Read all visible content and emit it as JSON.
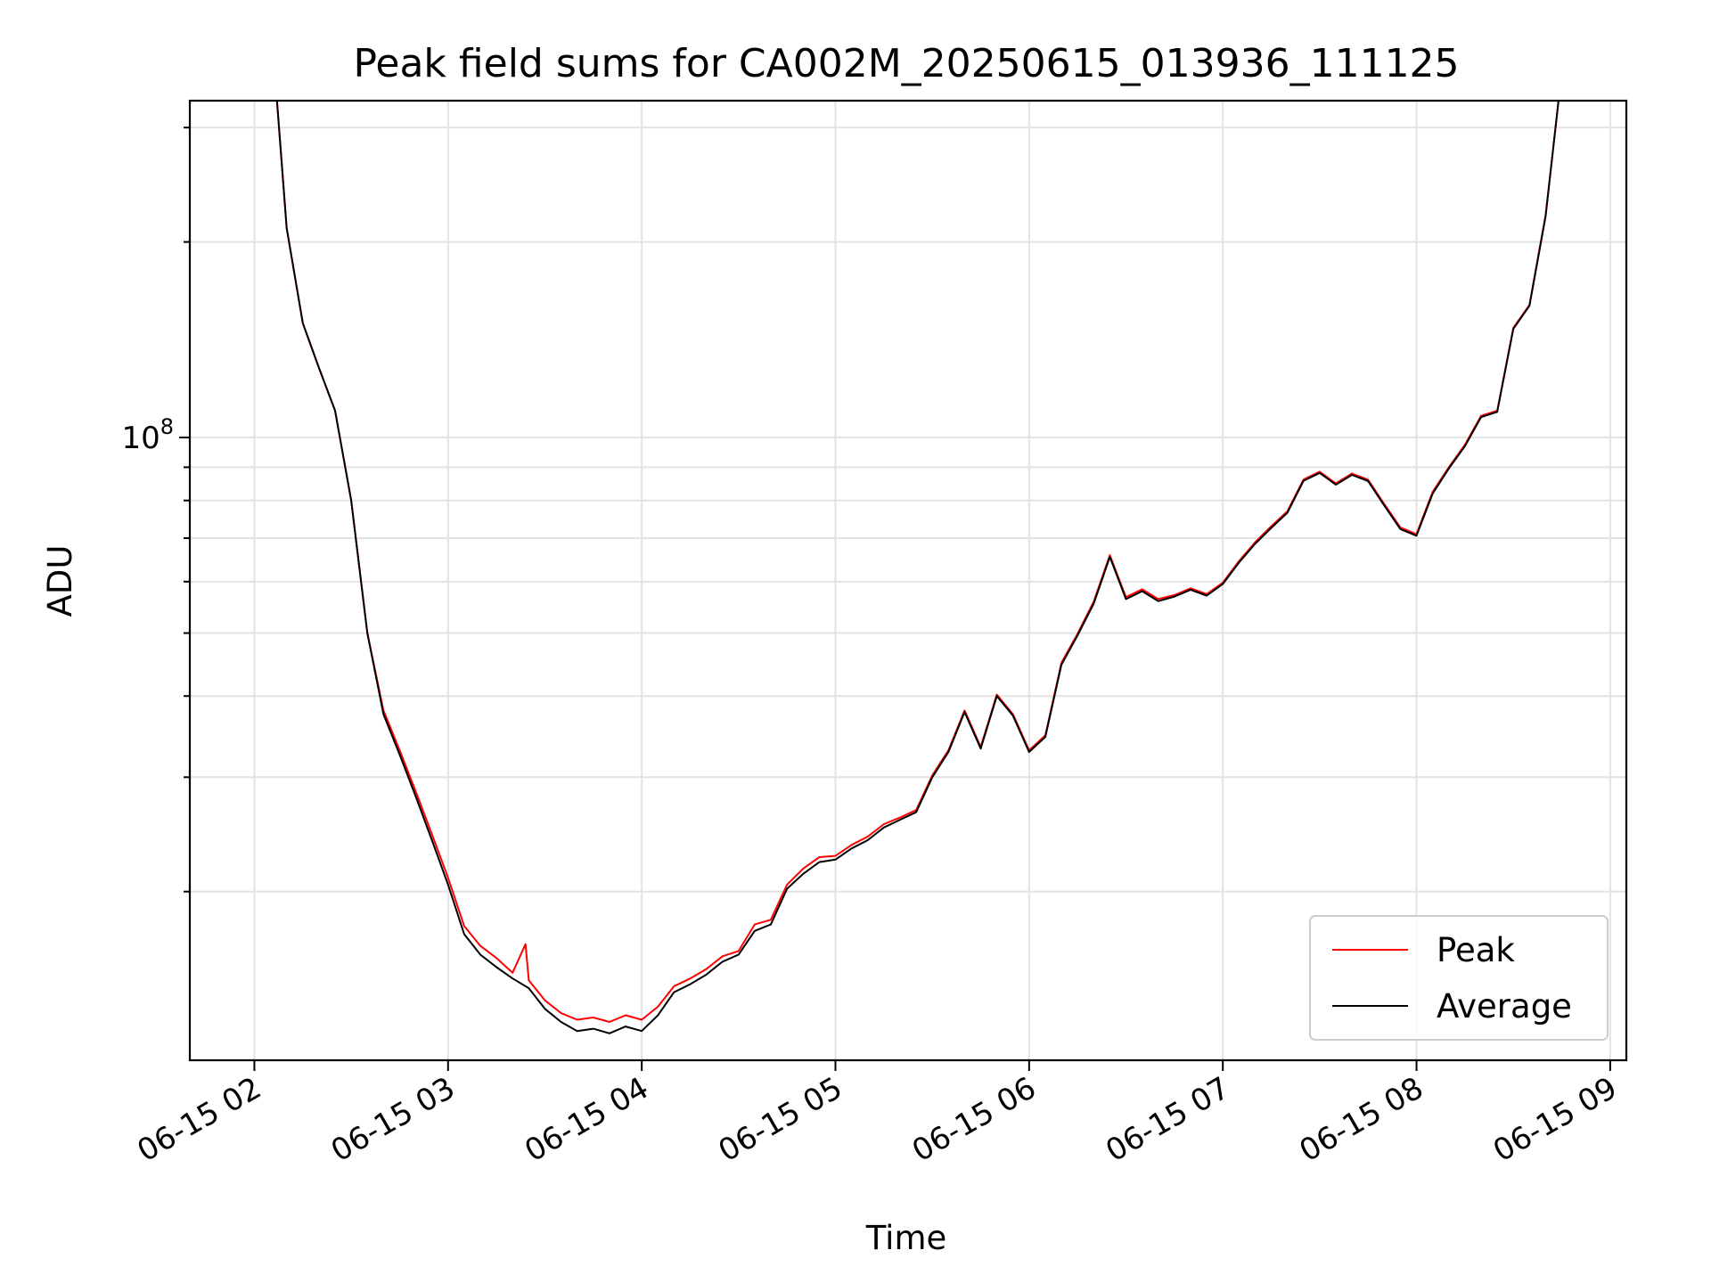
{
  "chart_data": {
    "type": "line",
    "title": "Peak field sums for CA002M_20250615_013936_111125",
    "xlabel": "Time",
    "ylabel": "ADU",
    "y_scale": "log",
    "ylim": [
      11000000,
      330000000
    ],
    "y_tick_label": {
      "base": "10",
      "exponent": "8"
    },
    "x_range_hours": [
      "06-15 01:40",
      "06-15 09:05"
    ],
    "x_ticks": [
      {
        "time": "02:00",
        "label": "06-15 02"
      },
      {
        "time": "03:00",
        "label": "06-15 03"
      },
      {
        "time": "04:00",
        "label": "06-15 04"
      },
      {
        "time": "05:00",
        "label": "06-15 05"
      },
      {
        "time": "06:00",
        "label": "06-15 06"
      },
      {
        "time": "07:00",
        "label": "06-15 07"
      },
      {
        "time": "08:00",
        "label": "06-15 08"
      },
      {
        "time": "09:00",
        "label": "06-15 09"
      }
    ],
    "grid": true,
    "legend_position": "lower right",
    "legend": [
      {
        "label": "Peak",
        "color": "#ff0000"
      },
      {
        "label": "Average",
        "color": "#000000"
      }
    ],
    "series": [
      {
        "name": "Peak",
        "color": "#ff0000",
        "points": [
          [
            "02:07",
            330000000
          ],
          [
            "02:10",
            210000000
          ],
          [
            "02:15",
            150000000
          ],
          [
            "02:20",
            128000000
          ],
          [
            "02:25",
            110000000
          ],
          [
            "02:30",
            80000000
          ],
          [
            "02:35",
            50000000
          ],
          [
            "02:40",
            38000000
          ],
          [
            "02:45",
            33000000
          ],
          [
            "02:50",
            28500000
          ],
          [
            "02:55",
            24500000
          ],
          [
            "03:00",
            21000000
          ],
          [
            "03:05",
            17700000
          ],
          [
            "03:10",
            16500000
          ],
          [
            "03:15",
            15800000
          ],
          [
            "03:20",
            15000000
          ],
          [
            "03:24",
            16600000
          ],
          [
            "03:25",
            14600000
          ],
          [
            "03:30",
            13600000
          ],
          [
            "03:35",
            13000000
          ],
          [
            "03:40",
            12700000
          ],
          [
            "03:45",
            12800000
          ],
          [
            "03:50",
            12600000
          ],
          [
            "03:55",
            12900000
          ],
          [
            "04:00",
            12700000
          ],
          [
            "04:05",
            13300000
          ],
          [
            "04:10",
            14300000
          ],
          [
            "04:15",
            14700000
          ],
          [
            "04:20",
            15200000
          ],
          [
            "04:25",
            15900000
          ],
          [
            "04:30",
            16200000
          ],
          [
            "04:35",
            17800000
          ],
          [
            "04:40",
            18100000
          ],
          [
            "04:45",
            20500000
          ],
          [
            "04:50",
            21700000
          ],
          [
            "04:55",
            22600000
          ],
          [
            "05:00",
            22700000
          ],
          [
            "05:05",
            23600000
          ],
          [
            "05:10",
            24300000
          ],
          [
            "05:15",
            25400000
          ],
          [
            "05:20",
            26000000
          ],
          [
            "05:25",
            26700000
          ],
          [
            "05:30",
            30200000
          ],
          [
            "05:35",
            33000000
          ],
          [
            "05:40",
            38000000
          ],
          [
            "05:45",
            33400000
          ],
          [
            "05:50",
            40200000
          ],
          [
            "05:55",
            37500000
          ],
          [
            "06:00",
            33000000
          ],
          [
            "06:05",
            34800000
          ],
          [
            "06:10",
            45000000
          ],
          [
            "06:15",
            49900000
          ],
          [
            "06:20",
            55900000
          ],
          [
            "06:25",
            65900000
          ],
          [
            "06:30",
            56800000
          ],
          [
            "06:35",
            58400000
          ],
          [
            "06:40",
            56400000
          ],
          [
            "06:45",
            57200000
          ],
          [
            "06:50",
            58600000
          ],
          [
            "06:55",
            57400000
          ],
          [
            "07:00",
            59800000
          ],
          [
            "07:05",
            64500000
          ],
          [
            "07:10",
            69000000
          ],
          [
            "07:15",
            73000000
          ],
          [
            "07:20",
            77000000
          ],
          [
            "07:25",
            86200000
          ],
          [
            "07:30",
            88600000
          ],
          [
            "07:35",
            85000000
          ],
          [
            "07:40",
            88000000
          ],
          [
            "07:45",
            86100000
          ],
          [
            "07:50",
            79000000
          ],
          [
            "07:55",
            72700000
          ],
          [
            "08:00",
            71000000
          ],
          [
            "08:05",
            82500000
          ],
          [
            "08:10",
            90000000
          ],
          [
            "08:15",
            97500000
          ],
          [
            "08:20",
            108000000
          ],
          [
            "08:25",
            110000000
          ],
          [
            "08:30",
            147500000
          ],
          [
            "08:35",
            160000000
          ],
          [
            "08:40",
            220000000
          ],
          [
            "08:44",
            330000000
          ]
        ]
      },
      {
        "name": "Average",
        "color": "#000000",
        "points": [
          [
            "02:07",
            330000000
          ],
          [
            "02:10",
            210000000
          ],
          [
            "02:15",
            150000000
          ],
          [
            "02:20",
            128000000
          ],
          [
            "02:25",
            110000000
          ],
          [
            "02:30",
            80000000
          ],
          [
            "02:35",
            50000000
          ],
          [
            "02:40",
            37500000
          ],
          [
            "02:45",
            32500000
          ],
          [
            "02:50",
            28000000
          ],
          [
            "02:55",
            24000000
          ],
          [
            "03:00",
            20500000
          ],
          [
            "03:05",
            17200000
          ],
          [
            "03:10",
            16000000
          ],
          [
            "03:15",
            15300000
          ],
          [
            "03:20",
            14700000
          ],
          [
            "03:25",
            14200000
          ],
          [
            "03:30",
            13200000
          ],
          [
            "03:35",
            12600000
          ],
          [
            "03:40",
            12200000
          ],
          [
            "03:45",
            12300000
          ],
          [
            "03:50",
            12100000
          ],
          [
            "03:55",
            12400000
          ],
          [
            "04:00",
            12200000
          ],
          [
            "04:05",
            12900000
          ],
          [
            "04:10",
            14000000
          ],
          [
            "04:15",
            14400000
          ],
          [
            "04:20",
            14900000
          ],
          [
            "04:25",
            15600000
          ],
          [
            "04:30",
            16000000
          ],
          [
            "04:35",
            17400000
          ],
          [
            "04:40",
            17800000
          ],
          [
            "04:45",
            20200000
          ],
          [
            "04:50",
            21300000
          ],
          [
            "04:55",
            22200000
          ],
          [
            "05:00",
            22400000
          ],
          [
            "05:05",
            23300000
          ],
          [
            "05:10",
            24000000
          ],
          [
            "05:15",
            25100000
          ],
          [
            "05:20",
            25800000
          ],
          [
            "05:25",
            26500000
          ],
          [
            "05:30",
            30000000
          ],
          [
            "05:35",
            32800000
          ],
          [
            "05:40",
            37800000
          ],
          [
            "05:45",
            33200000
          ],
          [
            "05:50",
            40000000
          ],
          [
            "05:55",
            37300000
          ],
          [
            "06:00",
            32800000
          ],
          [
            "06:05",
            34600000
          ],
          [
            "06:10",
            44700000
          ],
          [
            "06:15",
            49600000
          ],
          [
            "06:20",
            55500000
          ],
          [
            "06:25",
            65500000
          ],
          [
            "06:30",
            56400000
          ],
          [
            "06:35",
            58000000
          ],
          [
            "06:40",
            56000000
          ],
          [
            "06:45",
            56900000
          ],
          [
            "06:50",
            58300000
          ],
          [
            "06:55",
            57100000
          ],
          [
            "07:00",
            59500000
          ],
          [
            "07:05",
            64200000
          ],
          [
            "07:10",
            68600000
          ],
          [
            "07:15",
            72600000
          ],
          [
            "07:20",
            76600000
          ],
          [
            "07:25",
            85800000
          ],
          [
            "07:30",
            88200000
          ],
          [
            "07:35",
            84600000
          ],
          [
            "07:40",
            87600000
          ],
          [
            "07:45",
            85700000
          ],
          [
            "07:50",
            78600000
          ],
          [
            "07:55",
            72300000
          ],
          [
            "08:00",
            70600000
          ],
          [
            "08:05",
            82000000
          ],
          [
            "08:10",
            89600000
          ],
          [
            "08:15",
            97000000
          ],
          [
            "08:20",
            107500000
          ],
          [
            "08:25",
            109500000
          ],
          [
            "08:30",
            147000000
          ],
          [
            "08:35",
            159500000
          ],
          [
            "08:40",
            219000000
          ],
          [
            "08:44",
            330000000
          ]
        ]
      }
    ]
  }
}
